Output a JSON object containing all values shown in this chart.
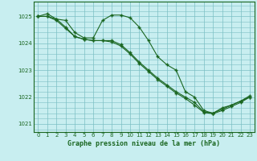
{
  "background_color": "#c8eef0",
  "grid_color": "#7bbfc4",
  "line_color": "#1a6620",
  "marker_color": "#1a6620",
  "title": "Graphe pression niveau de la mer (hPa)",
  "ylim": [
    1020.7,
    1025.55
  ],
  "xlim": [
    -0.5,
    23.5
  ],
  "yticks": [
    1021,
    1022,
    1023,
    1024,
    1025
  ],
  "xticks": [
    0,
    1,
    2,
    3,
    4,
    5,
    6,
    7,
    8,
    9,
    10,
    11,
    12,
    13,
    14,
    15,
    16,
    17,
    18,
    19,
    20,
    21,
    22,
    23
  ],
  "series1_x": [
    0,
    1,
    2,
    3,
    4,
    5,
    6,
    7,
    8,
    9,
    10,
    11,
    12,
    13,
    14,
    15,
    16,
    17,
    18,
    19,
    20,
    21,
    22,
    23
  ],
  "series1_y": [
    1025.0,
    1025.1,
    1024.9,
    1024.85,
    1024.4,
    1024.2,
    1024.2,
    1024.85,
    1025.05,
    1025.05,
    1024.95,
    1024.6,
    1024.1,
    1023.5,
    1023.2,
    1023.0,
    1022.2,
    1022.0,
    1021.5,
    1021.4,
    1021.6,
    1021.7,
    1021.85,
    1022.05
  ],
  "series2_x": [
    0,
    1,
    2,
    3,
    4,
    5,
    6,
    7,
    8,
    9,
    10,
    11,
    12,
    13,
    14,
    15,
    16,
    17,
    18,
    19,
    20,
    21,
    22,
    23
  ],
  "series2_y": [
    1025.0,
    1025.0,
    1024.85,
    1024.55,
    1024.25,
    1024.15,
    1024.1,
    1024.1,
    1024.1,
    1023.95,
    1023.65,
    1023.3,
    1023.0,
    1022.7,
    1022.45,
    1022.2,
    1022.0,
    1021.8,
    1021.45,
    1021.4,
    1021.55,
    1021.7,
    1021.85,
    1022.0
  ],
  "series3_x": [
    0,
    1,
    2,
    3,
    4,
    5,
    6,
    7,
    8,
    9,
    10,
    11,
    12,
    13,
    14,
    15,
    16,
    17,
    18,
    19,
    20,
    21,
    22,
    23
  ],
  "series3_y": [
    1025.0,
    1025.0,
    1024.9,
    1024.6,
    1024.25,
    1024.15,
    1024.1,
    1024.1,
    1024.05,
    1023.9,
    1023.6,
    1023.25,
    1022.95,
    1022.65,
    1022.4,
    1022.15,
    1021.95,
    1021.7,
    1021.43,
    1021.38,
    1021.5,
    1021.65,
    1021.8,
    1022.0
  ]
}
